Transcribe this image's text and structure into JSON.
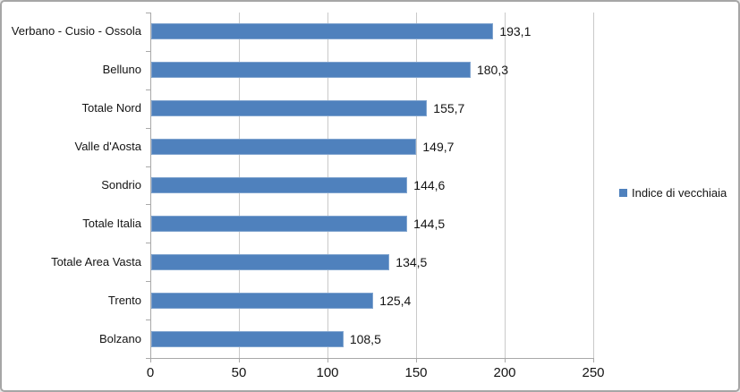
{
  "chart_data": {
    "type": "bar",
    "orientation": "horizontal",
    "title": "",
    "xlabel": "",
    "ylabel": "",
    "categories": [
      "Verbano - Cusio - Ossola",
      "Belluno",
      "Totale Nord",
      "Valle d'Aosta",
      "Sondrio",
      "Totale Italia",
      "Totale Area Vasta",
      "Trento",
      "Bolzano"
    ],
    "series": [
      {
        "name": "Indice di vecchiaia",
        "values": [
          193.1,
          180.3,
          155.7,
          149.7,
          144.6,
          144.5,
          134.5,
          125.4,
          108.5
        ],
        "value_labels": [
          "193,1",
          "180,3",
          "155,7",
          "149,7",
          "144,6",
          "144,5",
          "134,5",
          "125,4",
          "108,5"
        ]
      }
    ],
    "xlim": [
      0,
      250
    ],
    "x_ticks": [
      0,
      50,
      100,
      150,
      200,
      250
    ],
    "x_tick_labels": [
      "0",
      "50",
      "100",
      "150",
      "200",
      "250"
    ],
    "grid": "vertical",
    "legend": {
      "label": "Indice di vecchiaia",
      "position": "right"
    },
    "colors": {
      "bar": "#4f81bd",
      "gridline": "#c9c9c9",
      "axis": "#a9a9a9",
      "text": "#141414",
      "frame_border": "#a6a6a6",
      "background": "#ffffff"
    }
  }
}
